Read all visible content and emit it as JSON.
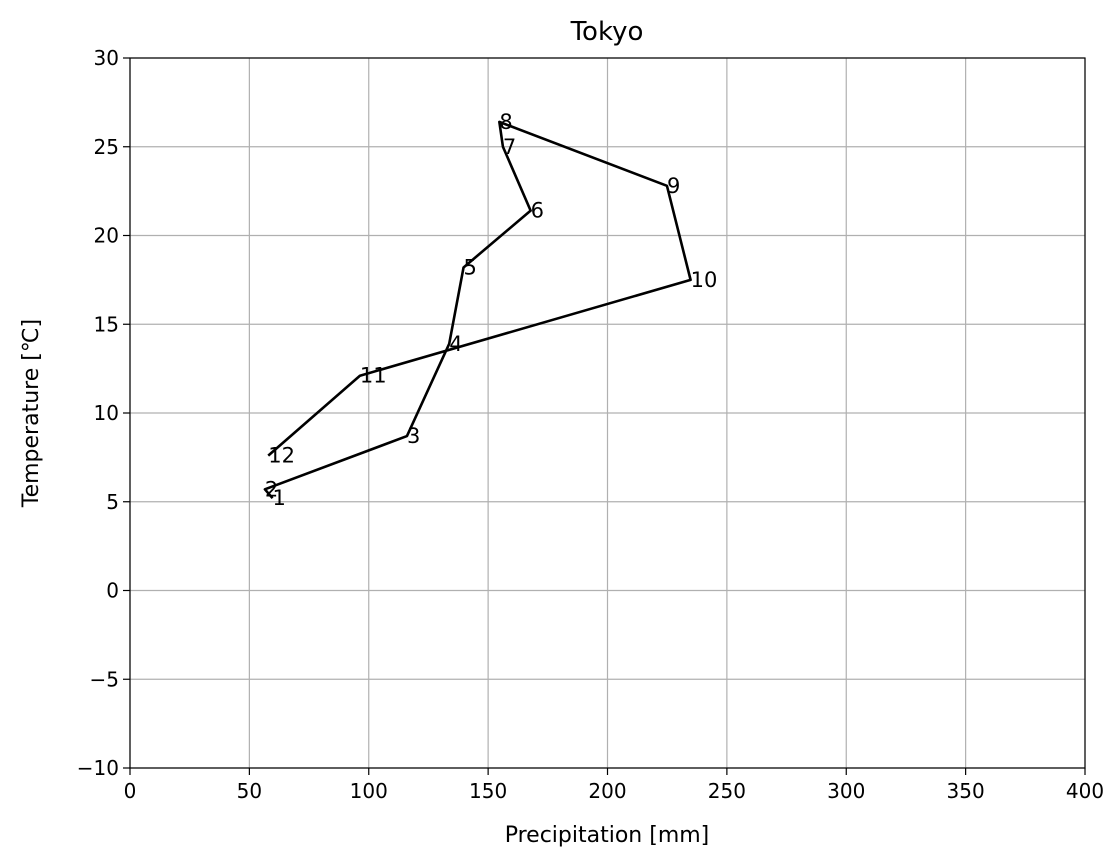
{
  "chart_data": {
    "type": "line",
    "title": "Tokyo",
    "xlabel": "Precipitation [mm]",
    "ylabel": "Temperature [℃]",
    "xlim": [
      0,
      400
    ],
    "ylim": [
      -10,
      30
    ],
    "xticks": [
      0,
      50,
      100,
      150,
      200,
      250,
      300,
      350,
      400
    ],
    "yticks": [
      -10,
      -5,
      0,
      5,
      10,
      15,
      20,
      25,
      30
    ],
    "xtick_labels": [
      "0",
      "50",
      "100",
      "150",
      "200",
      "250",
      "300",
      "350",
      "400"
    ],
    "ytick_labels": [
      "−10",
      "−5",
      "0",
      "5",
      "10",
      "15",
      "20",
      "25",
      "30"
    ],
    "grid": true,
    "line_color": "#000000",
    "points": [
      {
        "label": "1",
        "x": 59.7,
        "y": 5.2
      },
      {
        "label": "2",
        "x": 56.5,
        "y": 5.7
      },
      {
        "label": "3",
        "x": 116.0,
        "y": 8.7
      },
      {
        "label": "4",
        "x": 133.7,
        "y": 13.9
      },
      {
        "label": "5",
        "x": 139.7,
        "y": 18.2
      },
      {
        "label": "6",
        "x": 167.8,
        "y": 21.4
      },
      {
        "label": "7",
        "x": 156.2,
        "y": 25.0
      },
      {
        "label": "8",
        "x": 154.7,
        "y": 26.4
      },
      {
        "label": "9",
        "x": 224.9,
        "y": 22.8
      },
      {
        "label": "10",
        "x": 234.8,
        "y": 17.5
      },
      {
        "label": "11",
        "x": 96.3,
        "y": 12.1
      },
      {
        "label": "12",
        "x": 57.9,
        "y": 7.6
      }
    ]
  }
}
